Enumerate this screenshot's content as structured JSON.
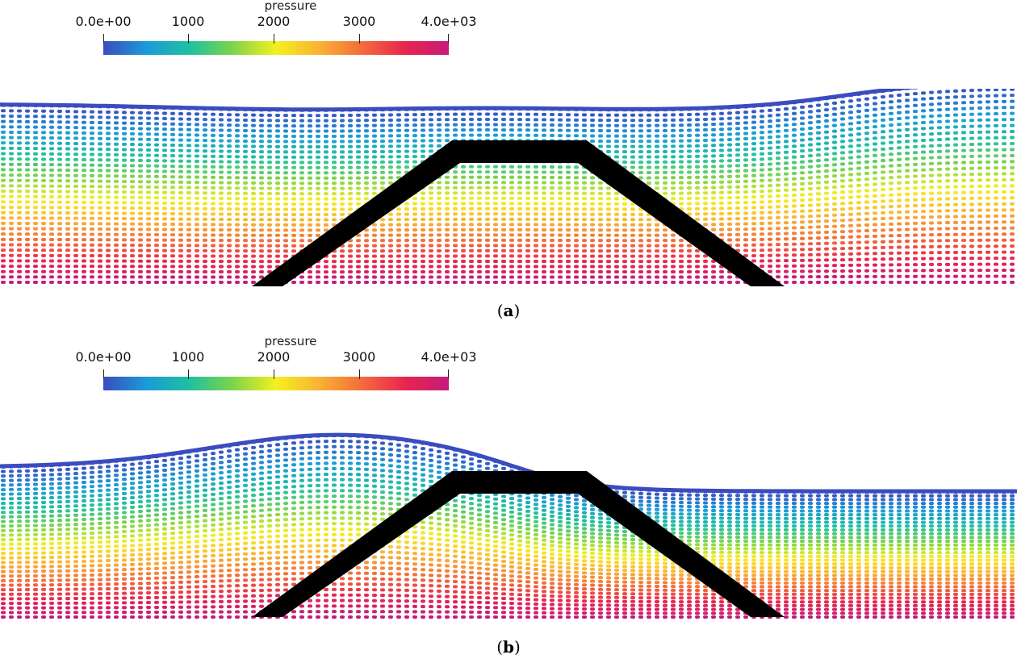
{
  "panels": [
    {
      "id": "a",
      "caption_open": "(",
      "caption_letter": "a",
      "caption_close": ")",
      "legend": {
        "title": "pressure",
        "ticks": [
          "0.0e+00",
          "1000",
          "2000",
          "3000",
          "4.0e+03"
        ],
        "tick_values": [
          0,
          1000,
          2000,
          3000,
          4000
        ],
        "range": [
          0,
          4000
        ]
      },
      "surface_profile": "dip_center_rise_right"
    },
    {
      "id": "b",
      "caption_open": "(",
      "caption_letter": "b",
      "caption_close": ")",
      "legend": {
        "title": "pressure",
        "ticks": [
          "0.0e+00",
          "1000",
          "2000",
          "3000",
          "4.0e+03"
        ],
        "tick_values": [
          0,
          1000,
          2000,
          3000,
          4000
        ],
        "range": [
          0,
          4000
        ]
      },
      "surface_profile": "hump_left_flat_right"
    }
  ],
  "colormap": [
    "#3b4cc0",
    "#1a9bd7",
    "#1fc0a0",
    "#7dd44a",
    "#f5f020",
    "#f9b233",
    "#f36b3a",
    "#e8254f",
    "#c51b7d"
  ]
}
